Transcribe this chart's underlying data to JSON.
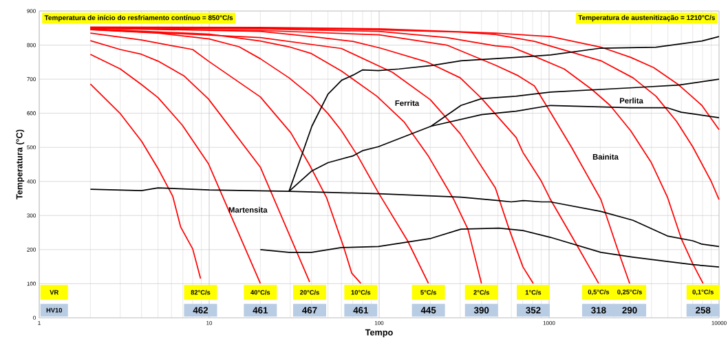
{
  "chart_data": {
    "type": "line",
    "xlabel": "Tempo",
    "ylabel": "Temperatura (°C)",
    "log": "x",
    "grid": true,
    "xlim": [
      1,
      10000
    ],
    "ylim": [
      0,
      900
    ],
    "xticks": [
      1,
      10,
      100,
      1000,
      10000
    ],
    "yticks": [
      0,
      100,
      200,
      300,
      400,
      500,
      600,
      700,
      800,
      900
    ],
    "series": [
      {
        "name": "82°C/s",
        "color": "#ff0000",
        "x": [
          2,
          3,
          4,
          5,
          6.1,
          6.8,
          8,
          8.9
        ],
        "values": [
          686,
          599,
          518,
          438,
          357,
          266,
          202,
          115
        ]
      },
      {
        "name": "40°C/s",
        "color": "#ff0000",
        "x": [
          2,
          3,
          4,
          5,
          6.95,
          9.9,
          20
        ],
        "values": [
          773,
          730,
          684,
          646,
          565,
          452,
          101
        ]
      },
      {
        "name": "20°C/s",
        "color": "#ff0000",
        "x": [
          2,
          3,
          4,
          5,
          7.1,
          9.9,
          20,
          39
        ],
        "values": [
          813,
          787,
          773,
          753,
          710,
          642,
          442,
          105
        ]
      },
      {
        "name": "10°C/s",
        "color": "#ff0000",
        "x": [
          2,
          4,
          8,
          9.9,
          20,
          30.2,
          39,
          49,
          62,
          69,
          78
        ],
        "values": [
          835,
          815,
          787,
          753,
          648,
          543,
          448,
          353,
          206,
          131,
          101
        ]
      },
      {
        "name": "5°C/s",
        "color": "#ff0000",
        "x": [
          2,
          5,
          10,
          15,
          20,
          29.5,
          40,
          50,
          60,
          75,
          99,
          147,
          195
        ],
        "values": [
          845,
          835,
          818,
          795,
          760,
          704,
          650,
          599,
          549,
          474,
          367,
          226,
          101
        ]
      },
      {
        "name": "2°C/s",
        "color": "#ff0000",
        "x": [
          2,
          10,
          20,
          29.5,
          40,
          60,
          97,
          140,
          195,
          275,
          333,
          400
        ],
        "values": [
          848,
          832,
          812,
          795,
          775,
          724,
          650,
          575,
          474,
          347,
          260,
          101
        ]
      },
      {
        "name": "1°C/s",
        "color": "#ff0000",
        "x": [
          2,
          20,
          60,
          120,
          200,
          300,
          483,
          582,
          702,
          807
        ],
        "values": [
          846,
          822,
          790,
          720,
          640,
          540,
          381,
          260,
          149,
          101
        ]
      },
      {
        "name": "0,5°C/s",
        "color": "#ff0000",
        "x": [
          2,
          20,
          40,
          70,
          102,
          190,
          300,
          400,
          640,
          702,
          900,
          1019,
          1435,
          1956
        ],
        "values": [
          850,
          840,
          825,
          811,
          791,
          751,
          704,
          644,
          529,
          485,
          401,
          347,
          219,
          101
        ]
      },
      {
        "name": "0,25°C/s",
        "color": "#ff0000",
        "x": [
          2,
          20,
          100,
          250,
          483,
          659,
          820,
          1019,
          1349,
          2017,
          2511,
          2978
        ],
        "values": [
          850,
          843,
          830,
          800,
          741,
          710,
          680,
          603,
          502,
          347,
          206,
          101
        ]
      },
      {
        "name": "0,1°C/s",
        "color": "#ff0000",
        "x": [
          2,
          20,
          100,
          250,
          483,
          601,
          820,
          1227,
          1784,
          2286,
          3020,
          3998,
          4970,
          5988,
          6996,
          8050
        ],
        "values": [
          851,
          848,
          840,
          822,
          798,
          794,
          767,
          730,
          670,
          623,
          549,
          455,
          354,
          233,
          159,
          101
        ]
      },
      {
        "color": "#ff0000",
        "x": [
          2,
          20,
          100,
          300,
          483,
          820,
          2017,
          3117,
          4255,
          5627,
          6996,
          8976,
          10000
        ],
        "values": [
          852,
          850,
          845,
          838,
          831,
          811,
          754,
          704,
          650,
          576,
          502,
          401,
          347
        ]
      },
      {
        "color": "#ff0000",
        "x": [
          2,
          20,
          100,
          483,
          1019,
          2017,
          3020,
          4124,
          5803,
          7925,
          10000
        ],
        "values": [
          853,
          852,
          848,
          835,
          825,
          794,
          764,
          734,
          683,
          623,
          552
        ]
      },
      {
        "color": "#000000",
        "x": [
          29.5,
          40.2,
          50,
          60.2,
          70.3,
          79.7,
          99,
          131,
          202,
          303,
          639,
          1019,
          2017,
          4255,
          7925,
          10000
        ],
        "values": [
          371,
          562,
          656,
          697,
          712,
          727,
          725,
          730,
          740,
          754,
          764,
          771,
          791,
          794,
          812,
          825
        ]
      },
      {
        "color": "#000000",
        "x": [
          29.5,
          40.2,
          50,
          70.3,
          79.7,
          99,
          202,
          303,
          401,
          639,
          1019,
          3117,
          5803,
          10000
        ],
        "values": [
          371,
          431,
          455,
          475,
          490,
          502,
          562,
          623,
          643,
          650,
          662,
          675,
          683,
          700
        ]
      },
      {
        "color": "#000000",
        "x": [
          202,
          401,
          639,
          1019,
          3020,
          4970,
          5988,
          10000
        ],
        "values": [
          562,
          596,
          606,
          623,
          616,
          616,
          603,
          587
        ]
      },
      {
        "color": "#000000",
        "x": [
          2,
          4,
          5,
          10,
          29.5,
          99,
          303,
          506,
          600,
          702,
          900,
          1019,
          2017,
          3117,
          4970,
          6996,
          7925,
          10000
        ],
        "values": [
          377,
          373,
          381,
          375,
          371,
          364,
          354,
          344,
          340,
          344,
          340,
          340,
          312,
          286,
          240,
          226,
          216,
          209
        ]
      },
      {
        "color": "#000000",
        "x": [
          20,
          29.5,
          40,
          60,
          99,
          202,
          303,
          506,
          702,
          1019,
          2017,
          3117,
          4970,
          6996,
          10000
        ],
        "values": [
          200,
          192,
          192,
          206,
          209,
          233,
          260,
          263,
          256,
          236,
          192,
          178,
          165,
          156,
          149
        ]
      }
    ],
    "annotations": [
      "Temperatura de início do resfriamento contínuo = 850°C/s",
      "Temperatura de austenitização = 1210°C/s",
      "VR",
      "HV10",
      "Ferrita",
      "Perlita",
      "Bainita",
      "Martensita",
      "462",
      "461",
      "467",
      "461",
      "445",
      "390",
      "352",
      "318",
      "290",
      "258"
    ]
  }
}
